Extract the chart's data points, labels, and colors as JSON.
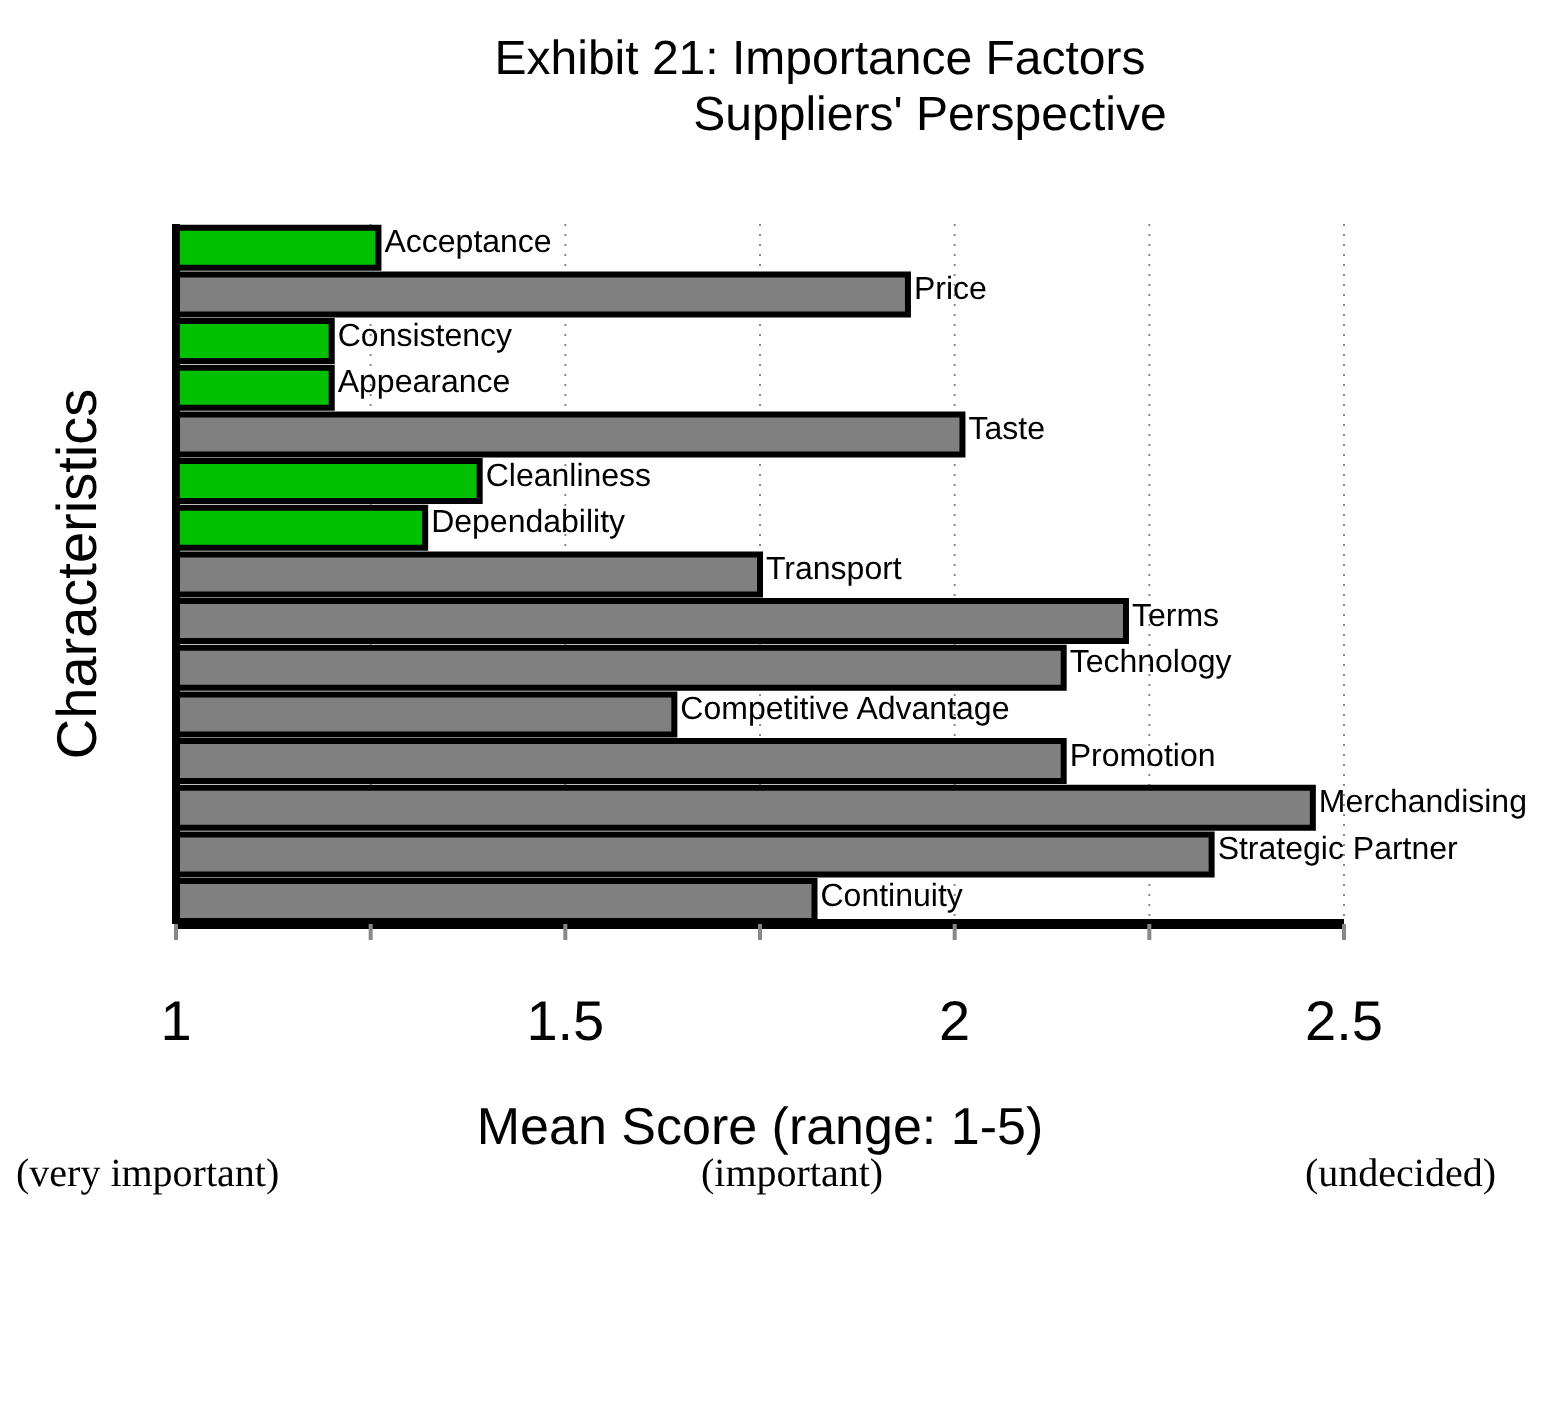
{
  "chart_data": {
    "type": "bar",
    "orientation": "horizontal",
    "title": "Exhibit 21: Importance Factors",
    "subtitle": "Suppliers' Perspective",
    "xlabel": "Mean Score (range: 1-5)",
    "ylabel": "Characteristics",
    "categories": [
      "Acceptance",
      "Price",
      "Consistency",
      "Appearance",
      "Taste",
      "Cleanliness",
      "Dependability",
      "Transport",
      "Terms",
      "Technology",
      "Competitive Advantage",
      "Promotion",
      "Merchandising",
      "Strategic Partner",
      "Continuity"
    ],
    "values": [
      1.26,
      1.94,
      1.2,
      1.2,
      2.01,
      1.39,
      1.32,
      1.75,
      2.22,
      2.14,
      1.64,
      2.14,
      2.46,
      2.33,
      1.82
    ],
    "colors": [
      "#00c000",
      "#808080",
      "#00c000",
      "#00c000",
      "#808080",
      "#00c000",
      "#00c000",
      "#808080",
      "#808080",
      "#808080",
      "#808080",
      "#808080",
      "#808080",
      "#808080",
      "#808080"
    ],
    "xlim": [
      1,
      2.5
    ],
    "xticks": [
      1,
      {
        "value": 1.25,
        "label": null
      },
      1.5,
      {
        "value": 1.75,
        "label": null
      },
      2,
      {
        "value": 2.25,
        "label": null
      },
      2.5
    ],
    "grid": "x",
    "annotations": [
      "(very important)",
      "(important)",
      "(undecided)"
    ]
  }
}
